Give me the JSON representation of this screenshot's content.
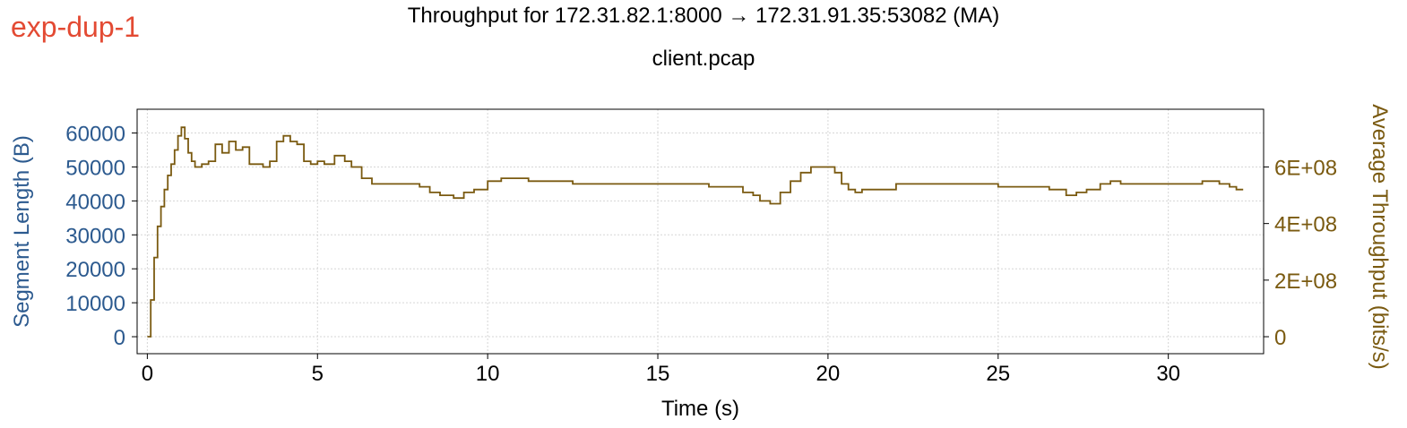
{
  "exp_label": "exp-dup-1",
  "colors": {
    "exp_label": "#e34a33",
    "left_axis": "#2c5a8f",
    "right_axis": "#7a5a10",
    "series": "#7a5a10"
  },
  "chart_data": {
    "type": "line",
    "title": "Throughput for 172.31.82.1:8000 → 172.31.91.35:53082 (MA)",
    "subtitle": "client.pcap",
    "xlabel": "Time (s)",
    "ylabel_left": "Segment Length (B)",
    "ylabel_right": "Average Throughput (bits/s)",
    "xlim": [
      -0.3,
      32.8
    ],
    "ylim_left": [
      -5000,
      67000
    ],
    "ylim_right": [
      -60000000,
      804000000
    ],
    "x_ticks": [
      0,
      5,
      10,
      15,
      20,
      25,
      30
    ],
    "y_left_ticks": [
      0,
      10000,
      20000,
      30000,
      40000,
      50000,
      60000
    ],
    "y_right_ticks": [
      0,
      200000000,
      400000000,
      600000000
    ],
    "y_right_tick_labels": [
      "0",
      "2E+08",
      "4E+08",
      "6E+08"
    ],
    "grid": true,
    "series": [
      {
        "axis": "right",
        "x": [
          0,
          0.1,
          0.2,
          0.3,
          0.4,
          0.5,
          0.6,
          0.7,
          0.8,
          0.9,
          1.0,
          1.1,
          1.2,
          1.3,
          1.4,
          1.5,
          1.6,
          1.8,
          2.0,
          2.2,
          2.4,
          2.6,
          2.8,
          3.0,
          3.2,
          3.4,
          3.6,
          3.8,
          4.0,
          4.2,
          4.4,
          4.6,
          4.8,
          5.0,
          5.2,
          5.5,
          5.8,
          6.0,
          6.3,
          6.6,
          7.0,
          7.5,
          8.0,
          8.3,
          8.6,
          9.0,
          9.3,
          9.6,
          10.0,
          10.4,
          10.8,
          11.2,
          11.6,
          12.0,
          12.5,
          13.0,
          13.5,
          14.0,
          14.5,
          15.0,
          15.5,
          16.0,
          16.5,
          17.0,
          17.5,
          17.8,
          18.0,
          18.3,
          18.6,
          18.9,
          19.2,
          19.5,
          19.8,
          20.0,
          20.2,
          20.4,
          20.6,
          20.8,
          21.0,
          21.5,
          22.0,
          22.5,
          23.0,
          23.5,
          24.0,
          24.5,
          25.0,
          25.5,
          26.0,
          26.5,
          27.0,
          27.3,
          27.6,
          28.0,
          28.3,
          28.6,
          29.0,
          29.5,
          30.0,
          30.5,
          31.0,
          31.5,
          31.8,
          32.0,
          32.2
        ],
        "y": [
          0,
          130000000,
          280000000,
          390000000,
          460000000,
          520000000,
          570000000,
          610000000,
          660000000,
          710000000,
          740000000,
          700000000,
          650000000,
          620000000,
          600000000,
          600000000,
          610000000,
          620000000,
          680000000,
          650000000,
          690000000,
          660000000,
          670000000,
          610000000,
          610000000,
          600000000,
          620000000,
          690000000,
          710000000,
          690000000,
          680000000,
          620000000,
          610000000,
          620000000,
          610000000,
          640000000,
          620000000,
          600000000,
          560000000,
          540000000,
          540000000,
          540000000,
          530000000,
          510000000,
          500000000,
          490000000,
          510000000,
          520000000,
          550000000,
          560000000,
          560000000,
          550000000,
          550000000,
          550000000,
          540000000,
          540000000,
          540000000,
          540000000,
          540000000,
          540000000,
          540000000,
          540000000,
          530000000,
          530000000,
          510000000,
          500000000,
          480000000,
          470000000,
          510000000,
          550000000,
          580000000,
          600000000,
          600000000,
          600000000,
          580000000,
          540000000,
          520000000,
          510000000,
          520000000,
          520000000,
          540000000,
          540000000,
          540000000,
          540000000,
          540000000,
          540000000,
          530000000,
          530000000,
          530000000,
          520000000,
          500000000,
          510000000,
          520000000,
          540000000,
          550000000,
          540000000,
          540000000,
          540000000,
          540000000,
          540000000,
          550000000,
          540000000,
          530000000,
          520000000,
          520000000
        ]
      }
    ]
  }
}
